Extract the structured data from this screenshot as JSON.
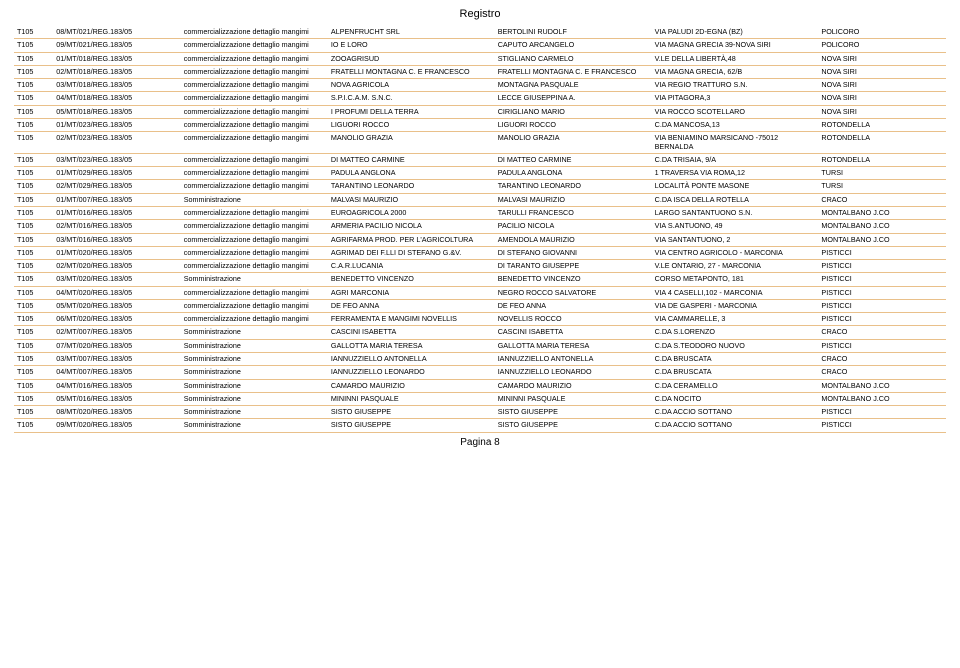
{
  "title": "Registro",
  "footer": "Pagina 8",
  "colWidths": [
    "4%",
    "13%",
    "15%",
    "17%",
    "16%",
    "17%",
    "13%"
  ],
  "rows": [
    [
      "T105",
      "08/MT/021/REG.183/05",
      "commercializzazione dettaglio mangimi",
      "ALPENFRUCHT SRL",
      "BERTOLINI RUDOLF",
      "VIA PALUDI 2D-EGNA (BZ)",
      "POLICORO"
    ],
    [
      "T105",
      "09/MT/021/REG.183/05",
      "commercializzazione dettaglio mangimi",
      "IO E LORO",
      "CAPUTO ARCANGELO",
      "VIA MAGNA GRECIA 39-NOVA SIRI",
      "POLICORO"
    ],
    [
      "T105",
      "01/MT/018/REG.183/05",
      "commercializzazione dettaglio mangimi",
      "ZOOAGRISUD",
      "STIGLIANO CARMELO",
      "V.LE DELLA LIBERTÀ,48",
      "NOVA SIRI"
    ],
    [
      "T105",
      "02/MT/018/REG.183/05",
      "commercializzazione dettaglio mangimi",
      "FRATELLI MONTAGNA C. E FRANCESCO",
      "FRATELLI MONTAGNA C. E FRANCESCO",
      "VIA MAGNA GRECIA, 62/B",
      "NOVA SIRI"
    ],
    [
      "T105",
      "03/MT/018/REG.183/05",
      "commercializzazione dettaglio mangimi",
      "NOVA AGRICOLA",
      "MONTAGNA PASQUALE",
      "VIA REGIO TRATTURO S.N.",
      "NOVA SIRI"
    ],
    [
      "T105",
      "04/MT/018/REG.183/05",
      "commercializzazione dettaglio mangimi",
      "S.P.I.C.A.M.  S.N.C.",
      "LECCE GIUSEPPINA A.",
      "VIA PITAGORA,3",
      "NOVA SIRI"
    ],
    [
      "T105",
      "05/MT/018/REG.183/05",
      "commercializzazione dettaglio mangimi",
      "I PROFUMI DELLA TERRA",
      "CIRIGLIANO MARIO",
      "VIA ROCCO SCOTELLARO",
      "NOVA SIRI"
    ],
    [
      "T105",
      "01/MT/023/REG.183/05",
      "commercializzazione dettaglio mangimi",
      "LIGUORI ROCCO",
      "LIGUORI ROCCO",
      "C.DA MANCOSA,13",
      "ROTONDELLA"
    ],
    [
      "T105",
      "02/MT/023/REG.183/05",
      "commercializzazione dettaglio mangimi",
      "MANOLIO GRAZIA",
      "MANOLIO GRAZIA",
      "VIA BENIAMINO MARSICANO -75012 BERNALDA",
      "ROTONDELLA"
    ],
    [
      "T105",
      "03/MT/023/REG.183/05",
      "commercializzazione dettaglio mangimi",
      "DI MATTEO CARMINE",
      "DI MATTEO CARMINE",
      "C.DA TRISAIA, 9/A",
      "ROTONDELLA"
    ],
    [
      "T105",
      "01/MT/029/REG.183/05",
      "commercializzazione dettaglio mangimi",
      "PADULA ANGLONA",
      "PADULA ANGLONA",
      "1 TRAVERSA VIA ROMA,12",
      "TURSI"
    ],
    [
      "T105",
      "02/MT/029/REG.183/05",
      "commercializzazione dettaglio mangimi",
      "TARANTINO LEONARDO",
      "TARANTINO LEONARDO",
      "LOCALITÀ PONTE MASONE",
      "TURSI"
    ],
    [
      "T105",
      "01/MT/007/REG.183/05",
      "Somministrazione",
      "MALVASI MAURIZIO",
      "MALVASI MAURIZIO",
      "C.DA ISCA DELLA ROTELLA",
      "CRACO"
    ],
    [
      "T105",
      "01/MT/016/REG.183/05",
      "commercializzazione dettaglio mangimi",
      "EUROAGRICOLA 2000",
      "TARULLI FRANCESCO",
      "LARGO SANTANTUONO S.N.",
      "MONTALBANO J.CO"
    ],
    [
      "T105",
      "02/MT/016/REG.183/05",
      "commercializzazione dettaglio mangimi",
      "ARMERIA PACILIO NICOLA",
      "PACILIO NICOLA",
      "VIA S.ANTUONO, 49",
      "MONTALBANO J.CO"
    ],
    [
      "T105",
      "03/MT/016/REG.183/05",
      "commercializzazione dettaglio mangimi",
      "AGRIFARMA PROD. PER L'AGRICOLTURA",
      "AMENDOLA MAURIZIO",
      "VIA SANTANTUONO, 2",
      "MONTALBANO J.CO"
    ],
    [
      "T105",
      "01/MT/020/REG.183/05",
      "commercializzazione dettaglio mangimi",
      "AGRIMAD DEI F.LLI DI STEFANO G.&V.",
      "DI STEFANO GIOVANNI",
      "VIA CENTRO AGRICOLO - MARCONIA",
      "PISTICCI"
    ],
    [
      "T105",
      "02/MT/020/REG.183/05",
      "commercializzazione dettaglio mangimi",
      "C.A.R.LUCANIA",
      "DI TARANTO GIUSEPPE",
      "V.LE ONTARIO, 27 - MARCONIA",
      "PISTICCI"
    ],
    [
      "T105",
      "03/MT/020/REG.183/05",
      "Somministrazione",
      "BENEDETTO VINCENZO",
      "BENEDETTO VINCENZO",
      "CORSO METAPONTO, 181",
      "PISTICCI"
    ],
    [
      "T105",
      "04/MT/020/REG.183/05",
      "commercializzazione dettaglio mangimi",
      "AGRI MARCONIA",
      "NEGRO ROCCO SALVATORE",
      "VIA 4 CASELLI,102 - MARCONIA",
      "PISTICCI"
    ],
    [
      "T105",
      "05/MT/020/REG.183/05",
      "commercializzazione dettaglio mangimi",
      "DE FEO ANNA",
      "DE FEO ANNA",
      "VIA DE GASPERI - MARCONIA",
      "PISTICCI"
    ],
    [
      "T105",
      "06/MT/020/REG.183/05",
      "commercializzazione dettaglio mangimi",
      "FERRAMENTA E MANGIMI NOVELLIS",
      "NOVELLIS ROCCO",
      "VIA CAMMARELLE, 3",
      "PISTICCI"
    ],
    [
      "T105",
      "02/MT/007/REG.183/05",
      "Somministrazione",
      "CASCINI ISABETTA",
      "CASCINI ISABETTA",
      "C.DA S.LORENZO",
      "CRACO"
    ],
    [
      "T105",
      "07/MT/020/REG.183/05",
      "Somministrazione",
      "GALLOTTA MARIA TERESA",
      "GALLOTTA MARIA TERESA",
      "C.DA S.TEODORO NUOVO",
      "PISTICCI"
    ],
    [
      "T105",
      "03/MT/007/REG.183/05",
      "Somministrazione",
      "IANNUZZIELLO ANTONELLA",
      "IANNUZZIELLO ANTONELLA",
      "C.DA BRUSCATA",
      "CRACO"
    ],
    [
      "T105",
      "04/MT/007/REG.183/05",
      "Somministrazione",
      "IANNUZZIELLO LEONARDO",
      "IANNUZZIELLO LEONARDO",
      "C.DA BRUSCATA",
      "CRACO"
    ],
    [
      "T105",
      "04/MT/016/REG.183/05",
      "Somministrazione",
      "CAMARDO MAURIZIO",
      "CAMARDO MAURIZIO",
      "C.DA CERAMELLO",
      "MONTALBANO J.CO"
    ],
    [
      "T105",
      "05/MT/016/REG.183/05",
      "Somministrazione",
      "MININNI PASQUALE",
      "MININNI PASQUALE",
      "C.DA NOCITO",
      "MONTALBANO J.CO"
    ],
    [
      "T105",
      "08/MT/020/REG.183/05",
      "Somministrazione",
      "SISTO GIUSEPPE",
      "SISTO GIUSEPPE",
      "C.DA ACCIO SOTTANO",
      "PISTICCI"
    ],
    [
      "T105",
      "09/MT/020/REG.183/05",
      "Somministrazione",
      "SISTO GIUSEPPE",
      "SISTO GIUSEPPE",
      "C.DA ACCIO SOTTANO",
      "PISTICCI"
    ]
  ]
}
